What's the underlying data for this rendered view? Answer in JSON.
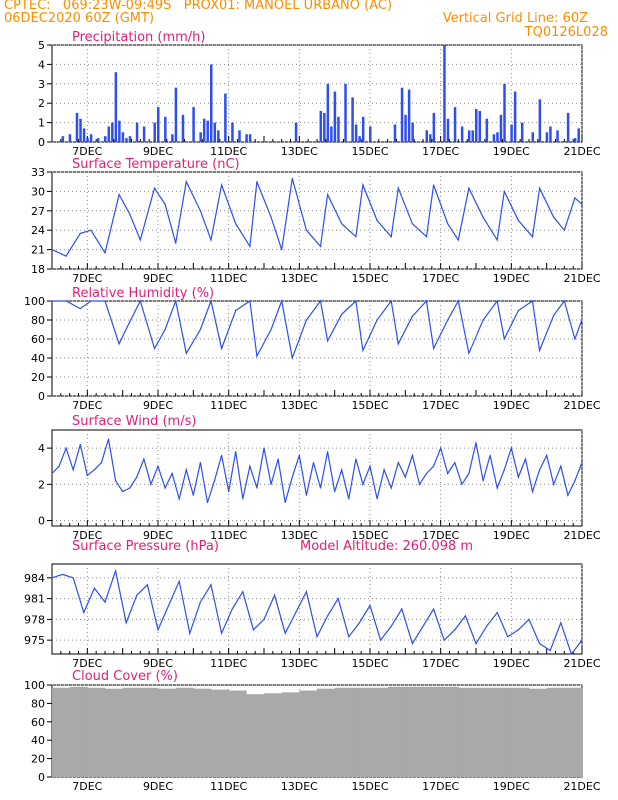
{
  "header": {
    "line1": "CPTEC:   069:23W-09:49S   PROX01: MANOEL URBANO (AC)",
    "line2": "06DEC2020 60Z (GMT)",
    "grid_note": "Vertical Grid Line: 60Z",
    "code": "TQ0126L028"
  },
  "colors": {
    "header": "#ff8c00",
    "panel_title": "#e0207a",
    "series": "#2f4ef0",
    "bars": "#2f4ef0",
    "cloud": "#a9a9a9",
    "grid": "#8c8c8c"
  },
  "model_altitude": "Model Altitude: 260.098 m",
  "chart_data": [
    {
      "type": "bar",
      "title": "Precipitation (mm/h)",
      "x_start_day": "6DEC",
      "x_end_day": "21DEC",
      "xticks": [
        "7DEC",
        "9DEC",
        "11DEC",
        "13DEC",
        "15DEC",
        "17DEC",
        "19DEC",
        "21DEC"
      ],
      "ylim": [
        0,
        5
      ],
      "yticks": [
        "0",
        "1",
        "2",
        "3",
        "4",
        "5"
      ],
      "x": [
        6.3,
        6.5,
        6.7,
        6.8,
        6.9,
        7.0,
        7.1,
        7.3,
        7.5,
        7.6,
        7.7,
        7.8,
        7.9,
        8.0,
        8.1,
        8.2,
        8.4,
        8.6,
        8.9,
        9.0,
        9.2,
        9.4,
        9.5,
        9.7,
        10.0,
        10.2,
        10.3,
        10.4,
        10.5,
        10.6,
        10.7,
        10.9,
        11.1,
        11.3,
        11.5,
        11.6,
        12.9,
        13.6,
        13.7,
        13.8,
        13.9,
        14.0,
        14.1,
        14.3,
        14.5,
        14.6,
        14.7,
        14.8,
        15.0,
        15.7,
        15.9,
        16.0,
        16.1,
        16.2,
        16.6,
        16.7,
        16.8,
        17.1,
        17.2,
        17.4,
        17.6,
        17.8,
        17.9,
        18.0,
        18.1,
        18.3,
        18.5,
        18.6,
        18.7,
        18.8,
        19.0,
        19.1,
        19.3,
        19.6,
        19.8,
        20.0,
        20.1,
        20.3,
        20.6,
        20.8,
        20.9
      ],
      "values": [
        0.3,
        0.4,
        1.5,
        1.2,
        0.7,
        0.2,
        0.4,
        0.2,
        0.3,
        0.8,
        1.0,
        3.6,
        1.1,
        0.5,
        0.2,
        0.3,
        1.0,
        0.8,
        1.0,
        1.8,
        1.3,
        0.4,
        2.8,
        1.4,
        1.8,
        0.5,
        1.2,
        1.1,
        4.0,
        1.0,
        0.6,
        2.5,
        1.0,
        0.6,
        0.4,
        0.4,
        1.0,
        1.6,
        1.5,
        3.0,
        0.8,
        2.6,
        1.3,
        3.0,
        2.3,
        0.9,
        0.3,
        1.3,
        0.8,
        0.9,
        2.8,
        1.4,
        2.7,
        1.0,
        0.6,
        0.4,
        1.5,
        5.0,
        1.2,
        1.8,
        0.8,
        0.6,
        0.6,
        1.7,
        1.6,
        1.2,
        0.4,
        0.5,
        1.4,
        3.0,
        0.9,
        2.6,
        1.0,
        0.5,
        2.2,
        0.5,
        0.8,
        0.6,
        1.5,
        0.2,
        0.7
      ]
    },
    {
      "type": "line",
      "title": "Surface Temperature (nC)",
      "xticks": [
        "7DEC",
        "9DEC",
        "11DEC",
        "13DEC",
        "15DEC",
        "17DEC",
        "19DEC",
        "21DEC"
      ],
      "ylim": [
        18,
        33
      ],
      "yticks": [
        "18",
        "21",
        "24",
        "27",
        "30",
        "33"
      ],
      "x": [
        6.0,
        6.4,
        6.8,
        7.1,
        7.5,
        7.9,
        8.2,
        8.5,
        8.9,
        9.2,
        9.5,
        9.8,
        10.2,
        10.5,
        10.8,
        11.2,
        11.6,
        11.8,
        12.2,
        12.5,
        12.8,
        13.2,
        13.6,
        13.8,
        14.2,
        14.6,
        14.8,
        15.2,
        15.6,
        15.8,
        16.2,
        16.6,
        16.8,
        17.2,
        17.5,
        17.8,
        18.2,
        18.6,
        18.8,
        19.2,
        19.6,
        19.8,
        20.2,
        20.5,
        20.8,
        21.0
      ],
      "values": [
        21.0,
        20.0,
        23.5,
        24.0,
        20.5,
        29.5,
        26.5,
        22.5,
        30.5,
        28.0,
        22.0,
        31.5,
        27.0,
        22.5,
        31.0,
        25.0,
        21.5,
        31.5,
        26.0,
        21.0,
        32.0,
        24.0,
        21.5,
        29.5,
        25.0,
        23.0,
        31.0,
        25.5,
        23.0,
        30.5,
        25.0,
        23.0,
        31.0,
        25.0,
        22.5,
        30.5,
        26.0,
        22.5,
        30.0,
        25.5,
        23.0,
        30.5,
        26.0,
        24.0,
        29.0,
        28.0
      ]
    },
    {
      "type": "line",
      "title": "Relative Humidity (%)",
      "xticks": [
        "7DEC",
        "9DEC",
        "11DEC",
        "13DEC",
        "15DEC",
        "17DEC",
        "19DEC",
        "21DEC"
      ],
      "ylim": [
        0,
        100
      ],
      "yticks": [
        "0",
        "20",
        "40",
        "60",
        "80",
        "100"
      ],
      "x": [
        6.0,
        6.4,
        6.8,
        7.1,
        7.5,
        7.9,
        8.2,
        8.5,
        8.9,
        9.2,
        9.5,
        9.8,
        10.2,
        10.5,
        10.8,
        11.2,
        11.6,
        11.8,
        12.2,
        12.5,
        12.8,
        13.2,
        13.6,
        13.8,
        14.2,
        14.6,
        14.8,
        15.2,
        15.6,
        15.8,
        16.2,
        16.6,
        16.8,
        17.2,
        17.5,
        17.8,
        18.2,
        18.6,
        18.8,
        19.2,
        19.6,
        19.8,
        20.2,
        20.5,
        20.8,
        21.0
      ],
      "values": [
        100,
        100,
        92,
        100,
        100,
        55,
        78,
        100,
        50,
        70,
        100,
        45,
        70,
        100,
        50,
        90,
        100,
        42,
        70,
        100,
        40,
        80,
        100,
        58,
        86,
        100,
        48,
        80,
        100,
        55,
        84,
        100,
        50,
        80,
        100,
        45,
        80,
        100,
        60,
        90,
        100,
        48,
        85,
        100,
        60,
        80
      ]
    },
    {
      "type": "line",
      "title": "Surface Wind (m/s)",
      "xticks": [
        "7DEC",
        "9DEC",
        "11DEC",
        "13DEC",
        "15DEC",
        "17DEC",
        "19DEC",
        "21DEC"
      ],
      "ylim": [
        -0.3,
        5
      ],
      "yticks": [
        "0",
        "2",
        "4"
      ],
      "x": [
        6.0,
        6.2,
        6.4,
        6.6,
        6.8,
        7.0,
        7.2,
        7.4,
        7.6,
        7.8,
        8.0,
        8.2,
        8.4,
        8.6,
        8.8,
        9.0,
        9.2,
        9.4,
        9.6,
        9.8,
        10.0,
        10.2,
        10.4,
        10.6,
        10.8,
        11.0,
        11.2,
        11.4,
        11.6,
        11.8,
        12.0,
        12.2,
        12.4,
        12.6,
        12.8,
        13.0,
        13.2,
        13.4,
        13.6,
        13.8,
        14.0,
        14.2,
        14.4,
        14.6,
        14.8,
        15.0,
        15.2,
        15.4,
        15.6,
        15.8,
        16.0,
        16.2,
        16.4,
        16.6,
        16.8,
        17.0,
        17.2,
        17.4,
        17.6,
        17.8,
        18.0,
        18.2,
        18.4,
        18.6,
        18.8,
        19.0,
        19.2,
        19.4,
        19.6,
        19.8,
        20.0,
        20.2,
        20.4,
        20.6,
        20.8,
        21.0
      ],
      "values": [
        2.6,
        3.0,
        4.0,
        2.8,
        4.2,
        2.5,
        2.8,
        3.2,
        4.5,
        2.2,
        1.6,
        1.8,
        2.4,
        3.4,
        2.0,
        3.0,
        1.8,
        2.6,
        1.2,
        2.8,
        1.4,
        3.2,
        1.0,
        2.2,
        3.6,
        1.6,
        3.8,
        1.2,
        3.0,
        1.8,
        4.0,
        2.0,
        3.4,
        1.0,
        2.4,
        3.6,
        1.4,
        3.2,
        1.8,
        3.8,
        1.6,
        2.8,
        1.2,
        3.4,
        2.0,
        3.0,
        1.2,
        2.8,
        1.8,
        3.2,
        2.4,
        3.6,
        2.0,
        2.6,
        3.0,
        4.0,
        2.6,
        3.2,
        2.0,
        2.6,
        4.3,
        2.2,
        3.6,
        1.8,
        2.8,
        4.0,
        2.4,
        3.4,
        1.6,
        2.8,
        3.6,
        2.0,
        3.0,
        1.4,
        2.2,
        3.2
      ]
    },
    {
      "type": "line",
      "title": "Surface Pressure (hPa)",
      "xticks": [
        "7DEC",
        "9DEC",
        "11DEC",
        "13DEC",
        "15DEC",
        "17DEC",
        "19DEC",
        "21DEC"
      ],
      "ylim": [
        973,
        986
      ],
      "yticks": [
        "975",
        "978",
        "981",
        "984"
      ],
      "x": [
        6.0,
        6.3,
        6.6,
        6.9,
        7.2,
        7.5,
        7.8,
        8.1,
        8.4,
        8.7,
        9.0,
        9.3,
        9.6,
        9.9,
        10.2,
        10.5,
        10.8,
        11.1,
        11.4,
        11.7,
        12.0,
        12.3,
        12.6,
        12.9,
        13.2,
        13.5,
        13.8,
        14.1,
        14.4,
        14.7,
        15.0,
        15.3,
        15.6,
        15.9,
        16.2,
        16.5,
        16.8,
        17.1,
        17.4,
        17.7,
        18.0,
        18.3,
        18.6,
        18.9,
        19.2,
        19.5,
        19.8,
        20.1,
        20.4,
        20.7,
        21.0
      ],
      "values": [
        984.0,
        984.5,
        984.0,
        979.0,
        982.5,
        980.5,
        985.0,
        977.5,
        981.5,
        983.0,
        976.5,
        980.0,
        983.5,
        976.0,
        980.5,
        983.0,
        976.0,
        979.5,
        982.0,
        976.5,
        978.0,
        981.5,
        976.0,
        979.0,
        982.0,
        975.5,
        978.5,
        981.0,
        975.5,
        977.5,
        980.0,
        975.0,
        977.0,
        979.5,
        974.5,
        977.0,
        979.5,
        975.0,
        976.5,
        978.5,
        974.5,
        977.0,
        979.0,
        975.5,
        976.5,
        978.0,
        974.5,
        973.5,
        977.5,
        973.0,
        975.0
      ]
    },
    {
      "type": "bar",
      "title": "Cloud Cover (%)",
      "xticks": [
        "7DEC",
        "9DEC",
        "11DEC",
        "13DEC",
        "15DEC",
        "17DEC",
        "19DEC",
        "21DEC"
      ],
      "ylim": [
        0,
        100
      ],
      "yticks": [
        "0",
        "20",
        "40",
        "60",
        "80",
        "100"
      ],
      "fill": "near-continuous gray bars at about 90-100%, one gap near 11DEC",
      "x": [
        6.0,
        6.5,
        7.0,
        7.5,
        8.0,
        8.5,
        9.0,
        9.5,
        10.0,
        10.5,
        11.0,
        11.3,
        11.5,
        12.0,
        12.5,
        13.0,
        13.5,
        14.0,
        14.5,
        15.0,
        15.5,
        16.0,
        16.5,
        17.0,
        17.5,
        18.0,
        18.5,
        19.0,
        19.5,
        20.0,
        20.5,
        21.0
      ],
      "values": [
        97,
        98,
        97,
        96,
        97,
        97,
        96,
        97,
        96,
        95,
        94,
        0,
        90,
        91,
        92,
        94,
        96,
        97,
        97,
        97,
        98,
        98,
        98,
        98,
        97,
        97,
        97,
        97,
        96,
        97,
        97,
        97
      ]
    }
  ]
}
